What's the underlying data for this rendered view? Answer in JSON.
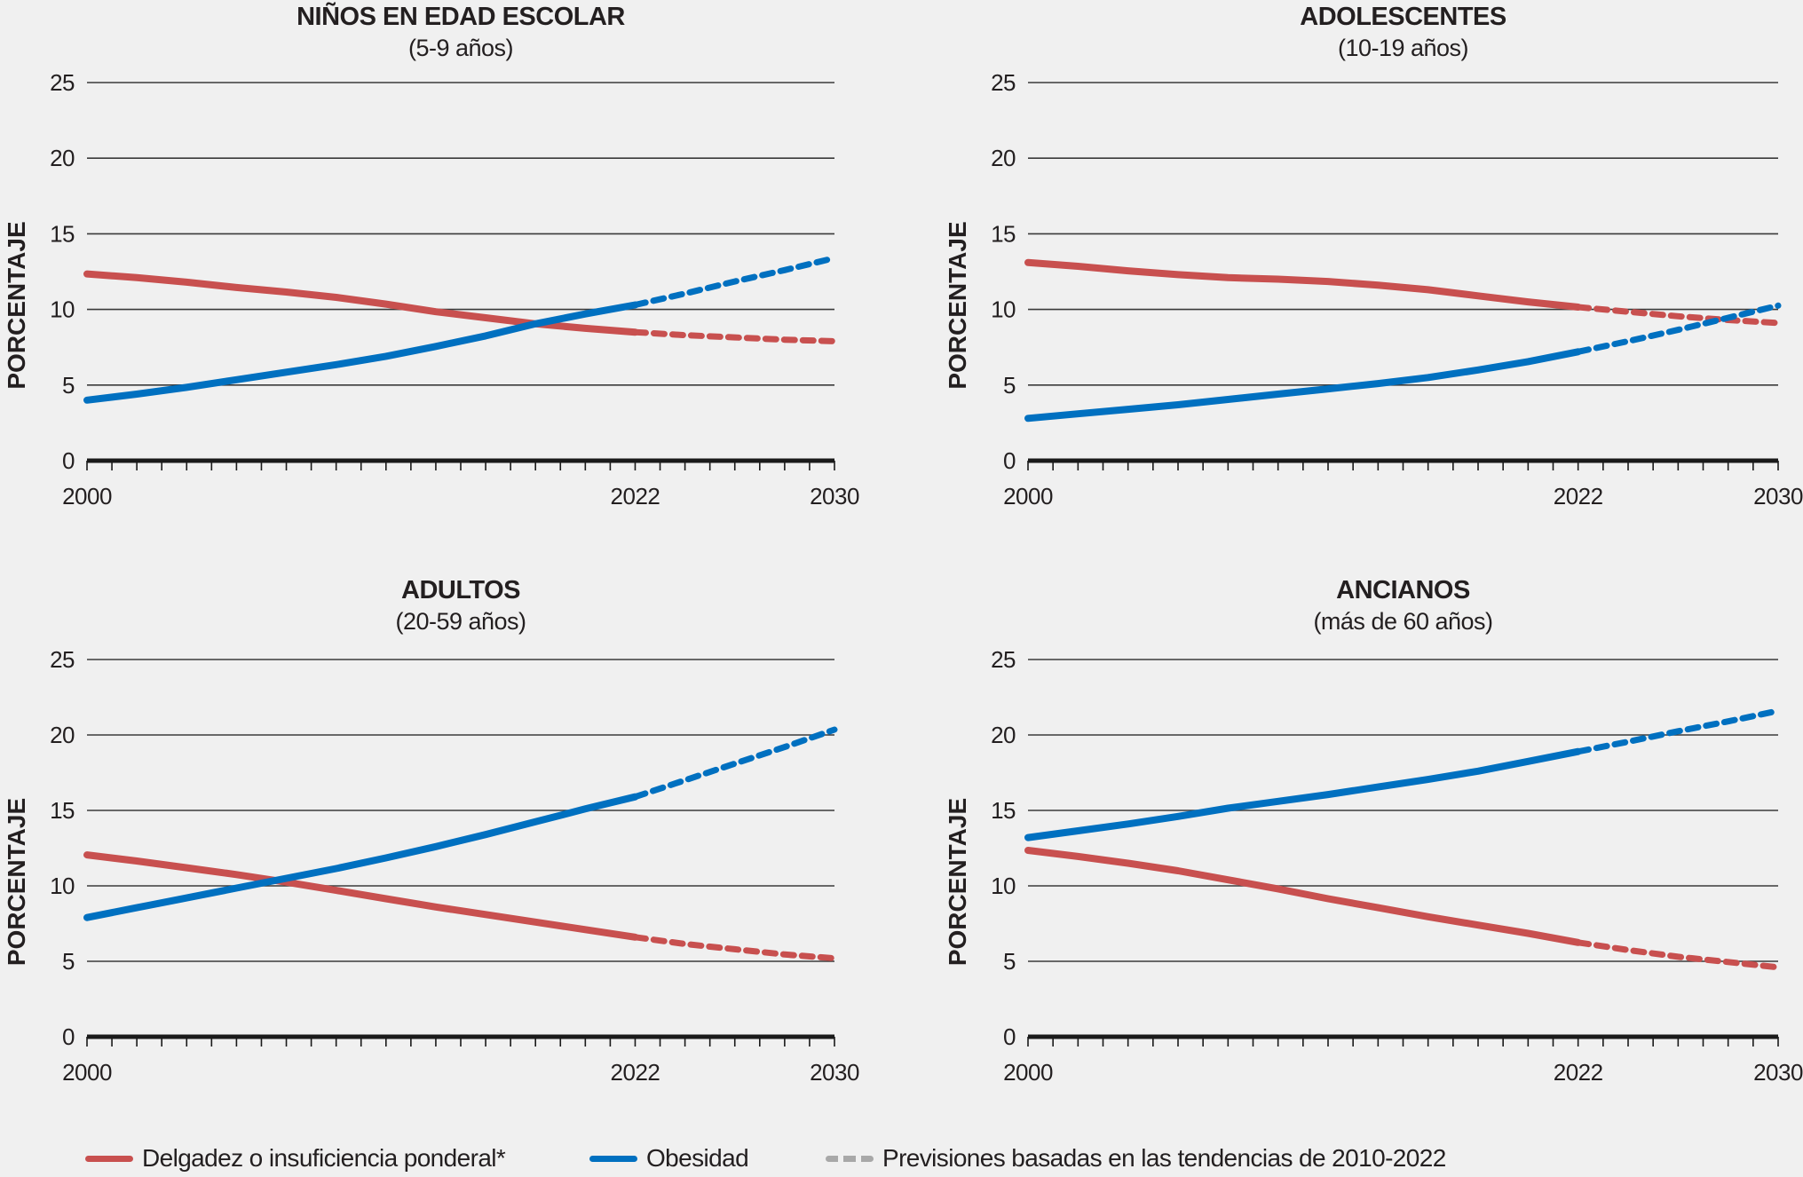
{
  "colors": {
    "background": "#f0f0f0",
    "thinness": "#c8504f",
    "obesity": "#0070c0",
    "projection_legend": "#a8a8a8",
    "grid": "#3a3a3a",
    "axis": "#1a1a1a"
  },
  "legend": {
    "items": [
      {
        "key": "thinness",
        "label": "Delgadez o insuficiencia ponderal*",
        "style": "solid"
      },
      {
        "key": "obesity",
        "label": "Obesidad",
        "style": "solid"
      },
      {
        "key": "projection",
        "label": "Previsiones basadas en las tendencias de 2010-2022",
        "style": "dashed"
      }
    ]
  },
  "chart_data": [
    {
      "type": "line",
      "title": "NIÑOS EN EDAD ESCOLAR",
      "subtitle": "(5-9 años)",
      "ylabel": "PORCENTAJE",
      "xlabel": "",
      "xlim": [
        2000,
        2030
      ],
      "ylim": [
        0,
        25
      ],
      "yticks": [
        0,
        5,
        10,
        15,
        20,
        25
      ],
      "xtick_labels": [
        "2000",
        "2022",
        "2030"
      ],
      "xticks_minor": "yearly",
      "grid": true,
      "series": [
        {
          "name": "Delgadez o insuficiencia ponderal*",
          "key": "thinness",
          "x": [
            2000,
            2002,
            2004,
            2006,
            2008,
            2010,
            2012,
            2014,
            2016,
            2018,
            2020,
            2022
          ],
          "values": [
            12.35,
            12.1,
            11.8,
            11.45,
            11.15,
            10.8,
            10.35,
            9.85,
            9.45,
            9.05,
            8.75,
            8.5
          ],
          "projection": {
            "x": [
              2022,
              2024,
              2026,
              2028,
              2030
            ],
            "values": [
              8.5,
              8.3,
              8.15,
              8.0,
              7.9
            ]
          }
        },
        {
          "name": "Obesidad",
          "key": "obesity",
          "x": [
            2000,
            2002,
            2004,
            2006,
            2008,
            2010,
            2012,
            2014,
            2016,
            2018,
            2020,
            2022
          ],
          "values": [
            4.0,
            4.4,
            4.85,
            5.35,
            5.85,
            6.35,
            6.9,
            7.55,
            8.25,
            9.05,
            9.7,
            10.3
          ],
          "projection": {
            "x": [
              2022,
              2024,
              2026,
              2028,
              2030
            ],
            "values": [
              10.3,
              11.05,
              11.85,
              12.6,
              13.4
            ]
          }
        }
      ]
    },
    {
      "type": "line",
      "title": "ADOLESCENTES",
      "subtitle": "(10-19 años)",
      "ylabel": "PORCENTAJE",
      "xlabel": "",
      "xlim": [
        2000,
        2030
      ],
      "ylim": [
        0,
        25
      ],
      "yticks": [
        0,
        5,
        10,
        15,
        20,
        25
      ],
      "xtick_labels": [
        "2000",
        "2022",
        "2030"
      ],
      "xticks_minor": "yearly",
      "grid": true,
      "series": [
        {
          "name": "Delgadez o insuficiencia ponderal*",
          "key": "thinness",
          "x": [
            2000,
            2002,
            2004,
            2006,
            2008,
            2010,
            2012,
            2014,
            2016,
            2018,
            2020,
            2022
          ],
          "values": [
            13.1,
            12.85,
            12.55,
            12.3,
            12.1,
            12.0,
            11.85,
            11.6,
            11.3,
            10.9,
            10.5,
            10.15
          ],
          "projection": {
            "x": [
              2022,
              2024,
              2026,
              2028,
              2030
            ],
            "values": [
              10.15,
              9.85,
              9.55,
              9.3,
              9.1
            ]
          }
        },
        {
          "name": "Obesidad",
          "key": "obesity",
          "x": [
            2000,
            2002,
            2004,
            2006,
            2008,
            2010,
            2012,
            2014,
            2016,
            2018,
            2020,
            2022
          ],
          "values": [
            2.8,
            3.1,
            3.4,
            3.7,
            4.05,
            4.4,
            4.75,
            5.1,
            5.5,
            6.0,
            6.55,
            7.2
          ],
          "projection": {
            "x": [
              2022,
              2024,
              2026,
              2028,
              2030
            ],
            "values": [
              7.2,
              7.9,
              8.65,
              9.45,
              10.25
            ]
          }
        }
      ]
    },
    {
      "type": "line",
      "title": "ADULTOS",
      "subtitle": "(20-59 años)",
      "ylabel": "PORCENTAJE",
      "xlabel": "",
      "xlim": [
        2000,
        2030
      ],
      "ylim": [
        0,
        25
      ],
      "yticks": [
        0,
        5,
        10,
        15,
        20,
        25
      ],
      "xtick_labels": [
        "2000",
        "2022",
        "2030"
      ],
      "xticks_minor": "yearly",
      "grid": true,
      "series": [
        {
          "name": "Delgadez o insuficiencia ponderal*",
          "key": "thinness",
          "x": [
            2000,
            2002,
            2004,
            2006,
            2008,
            2010,
            2012,
            2014,
            2016,
            2018,
            2020,
            2022
          ],
          "values": [
            12.05,
            11.65,
            11.2,
            10.75,
            10.25,
            9.7,
            9.15,
            8.6,
            8.1,
            7.6,
            7.1,
            6.6
          ],
          "projection": {
            "x": [
              2022,
              2024,
              2026,
              2028,
              2030
            ],
            "values": [
              6.6,
              6.15,
              5.8,
              5.45,
              5.2
            ]
          }
        },
        {
          "name": "Obesidad",
          "key": "obesity",
          "x": [
            2000,
            2002,
            2004,
            2006,
            2008,
            2010,
            2012,
            2014,
            2016,
            2018,
            2020,
            2022
          ],
          "values": [
            7.9,
            8.55,
            9.2,
            9.85,
            10.5,
            11.15,
            11.85,
            12.6,
            13.4,
            14.25,
            15.1,
            15.9
          ],
          "projection": {
            "x": [
              2022,
              2024,
              2026,
              2028,
              2030
            ],
            "values": [
              15.9,
              17.0,
              18.1,
              19.2,
              20.35
            ]
          }
        }
      ]
    },
    {
      "type": "line",
      "title": "ANCIANOS",
      "subtitle": "(más de 60 años)",
      "ylabel": "PORCENTAJE",
      "xlabel": "",
      "xlim": [
        2000,
        2030
      ],
      "ylim": [
        0,
        25
      ],
      "yticks": [
        0,
        5,
        10,
        15,
        20,
        25
      ],
      "xtick_labels": [
        "2000",
        "2022",
        "2030"
      ],
      "xticks_minor": "yearly",
      "grid": true,
      "series": [
        {
          "name": "Delgadez o insuficiencia ponderal*",
          "key": "thinness",
          "x": [
            2000,
            2002,
            2004,
            2006,
            2008,
            2010,
            2012,
            2014,
            2016,
            2018,
            2020,
            2022
          ],
          "values": [
            12.35,
            11.95,
            11.5,
            11.0,
            10.4,
            9.8,
            9.15,
            8.55,
            7.95,
            7.4,
            6.85,
            6.25
          ],
          "projection": {
            "x": [
              2022,
              2024,
              2026,
              2028,
              2030
            ],
            "values": [
              6.25,
              5.75,
              5.3,
              4.95,
              4.6
            ]
          }
        },
        {
          "name": "Obesidad",
          "key": "obesity",
          "x": [
            2000,
            2002,
            2004,
            2006,
            2008,
            2010,
            2012,
            2014,
            2016,
            2018,
            2020,
            2022
          ],
          "values": [
            13.2,
            13.65,
            14.1,
            14.6,
            15.15,
            15.6,
            16.05,
            16.55,
            17.05,
            17.6,
            18.25,
            18.9
          ],
          "projection": {
            "x": [
              2022,
              2024,
              2026,
              2028,
              2030
            ],
            "values": [
              18.9,
              19.55,
              20.25,
              20.9,
              21.6
            ]
          }
        }
      ]
    }
  ]
}
